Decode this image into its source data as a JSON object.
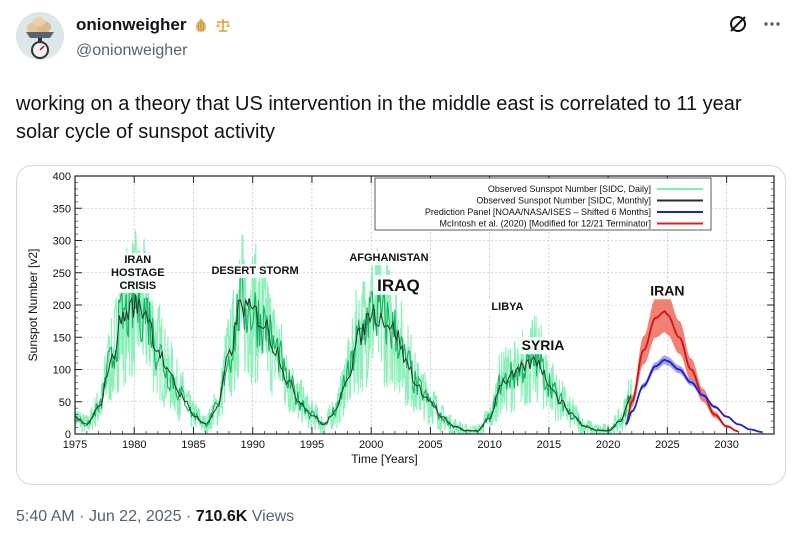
{
  "author": {
    "display_name": "onionweigher",
    "handle": "@onionweigher",
    "name_emojis": [
      "onion-emoji",
      "scales-emoji"
    ]
  },
  "header_icons": [
    "grok-icon",
    "more-options-icon"
  ],
  "tweet": {
    "text": "working on a theory that US intervention in the middle east is correlated to 11 year solar cycle of sunspot activity",
    "time": "5:40 AM",
    "sep1": "·",
    "date": "Jun 22, 2025",
    "sep2": "·",
    "views_count": "710.6K",
    "views_label": "Views"
  },
  "chart_data": {
    "type": "line",
    "xlabel": "Time [Years]",
    "ylabel": "Sunspot Number [v2]",
    "xlim": [
      1975,
      2034
    ],
    "ylim": [
      0,
      400
    ],
    "xticks": [
      1975,
      1980,
      1985,
      1990,
      1995,
      2000,
      2005,
      2010,
      2015,
      2020,
      2025,
      2030
    ],
    "yticks": [
      0,
      50,
      100,
      150,
      200,
      250,
      300,
      350,
      400
    ],
    "legend_position": "top-right",
    "legend": [
      {
        "label": "Observed Sunspot Number [SIDC, Daily]",
        "color": "#7ef0b0"
      },
      {
        "label": "Observed Sunspot Number [SIDC, Monthly]",
        "color": "#2a2a2a"
      },
      {
        "label": "Prediction Panel [NOAA/NASA/ISES – Shifted 6 Months]",
        "color": "#2222cc"
      },
      {
        "label": "McIntosh et al. (2020) [Modified for 12/21 Terminator]",
        "color": "#dd2222"
      }
    ],
    "series": [
      {
        "name": "Observed Sunspot Number [SIDC, Monthly]",
        "x": [
          1975,
          1976,
          1977,
          1978,
          1979,
          1980,
          1981,
          1982,
          1983,
          1984,
          1985,
          1986,
          1987,
          1988,
          1989,
          1990,
          1991,
          1992,
          1993,
          1994,
          1995,
          1996,
          1997,
          1998,
          1999,
          2000,
          2001,
          2002,
          2003,
          2004,
          2005,
          2006,
          2007,
          2008,
          2009,
          2010,
          2011,
          2012,
          2013,
          2014,
          2015,
          2016,
          2017,
          2018,
          2019,
          2020,
          2021,
          2022
        ],
        "y": [
          25,
          15,
          40,
          110,
          180,
          200,
          190,
          130,
          90,
          60,
          30,
          15,
          40,
          120,
          200,
          190,
          170,
          130,
          80,
          50,
          30,
          15,
          35,
          90,
          150,
          190,
          180,
          160,
          110,
          70,
          50,
          25,
          12,
          5,
          5,
          25,
          80,
          90,
          105,
          115,
          80,
          50,
          30,
          12,
          6,
          5,
          20,
          60
        ]
      },
      {
        "name": "Prediction Panel [NOAA/NASA/ISES – Shifted 6 Months]",
        "x": [
          2021.5,
          2022,
          2023,
          2024,
          2024.8,
          2025,
          2026,
          2027,
          2028,
          2029,
          2030,
          2031,
          2032,
          2033
        ],
        "y": [
          15,
          35,
          75,
          105,
          115,
          113,
          100,
          80,
          60,
          42,
          27,
          15,
          7,
          3
        ]
      },
      {
        "name": "McIntosh et al. (2020) [Modified for 12/21 Terminator]",
        "x": [
          2021.5,
          2022,
          2023,
          2024,
          2024.8,
          2025,
          2026,
          2027,
          2028,
          2029,
          2030,
          2031
        ],
        "y": [
          15,
          50,
          130,
          180,
          190,
          185,
          150,
          100,
          60,
          30,
          12,
          4
        ]
      }
    ],
    "annotations": [
      {
        "text": "IRAN",
        "x": 1980.3,
        "y": 265
      },
      {
        "text": "HOSTAGE",
        "x": 1980.3,
        "y": 245
      },
      {
        "text": "CRISIS",
        "x": 1980.3,
        "y": 225
      },
      {
        "text": "DESERT STORM",
        "x": 1990.2,
        "y": 248
      },
      {
        "text": "AFGHANISTAN",
        "x": 2001.5,
        "y": 268
      },
      {
        "text": "IRAQ",
        "x": 2002.3,
        "y": 222
      },
      {
        "text": "LIBYA",
        "x": 2011.5,
        "y": 192
      },
      {
        "text": "SYRIA",
        "x": 2014.5,
        "y": 130
      },
      {
        "text": "IRAN",
        "x": 2025,
        "y": 215
      }
    ]
  }
}
